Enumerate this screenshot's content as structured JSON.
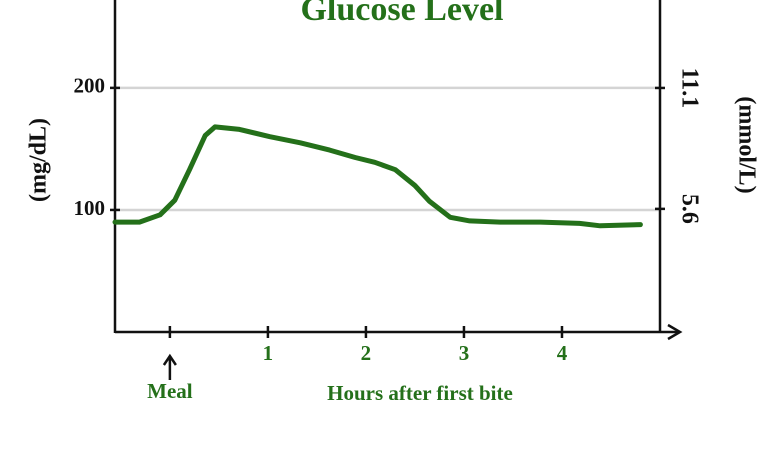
{
  "chart_data": {
    "type": "line",
    "title": "Glucose Level",
    "x_label": "Hours after first bite",
    "y_label": "(mg/dL)",
    "y2_label": "(mmol/L)",
    "x": [
      -0.56,
      -0.31,
      -0.1,
      0.05,
      0.2,
      0.36,
      0.46,
      0.71,
      1.02,
      1.33,
      1.63,
      1.89,
      2.09,
      2.3,
      2.5,
      2.65,
      2.86,
      3.06,
      3.37,
      3.78,
      4.18,
      4.39,
      4.8
    ],
    "series": [
      {
        "name": "Glucose",
        "color": "#24701a",
        "values": [
          90,
          90,
          96,
          108,
          133,
          161,
          168,
          166,
          160,
          155,
          149,
          143,
          139,
          133,
          120,
          107,
          94,
          91,
          90,
          90,
          89,
          87,
          88
        ]
      }
    ],
    "xlim": [
      -0.56,
      5.0
    ],
    "xticks": [
      {
        "value": 0,
        "label": "Meal"
      },
      1,
      2,
      3,
      4
    ],
    "ylim": [
      0,
      272
    ],
    "yticks": [
      100,
      200
    ],
    "y2lim": [
      0,
      15.1
    ],
    "y2ticks": [
      5.6,
      11.1
    ],
    "grid": true
  }
}
